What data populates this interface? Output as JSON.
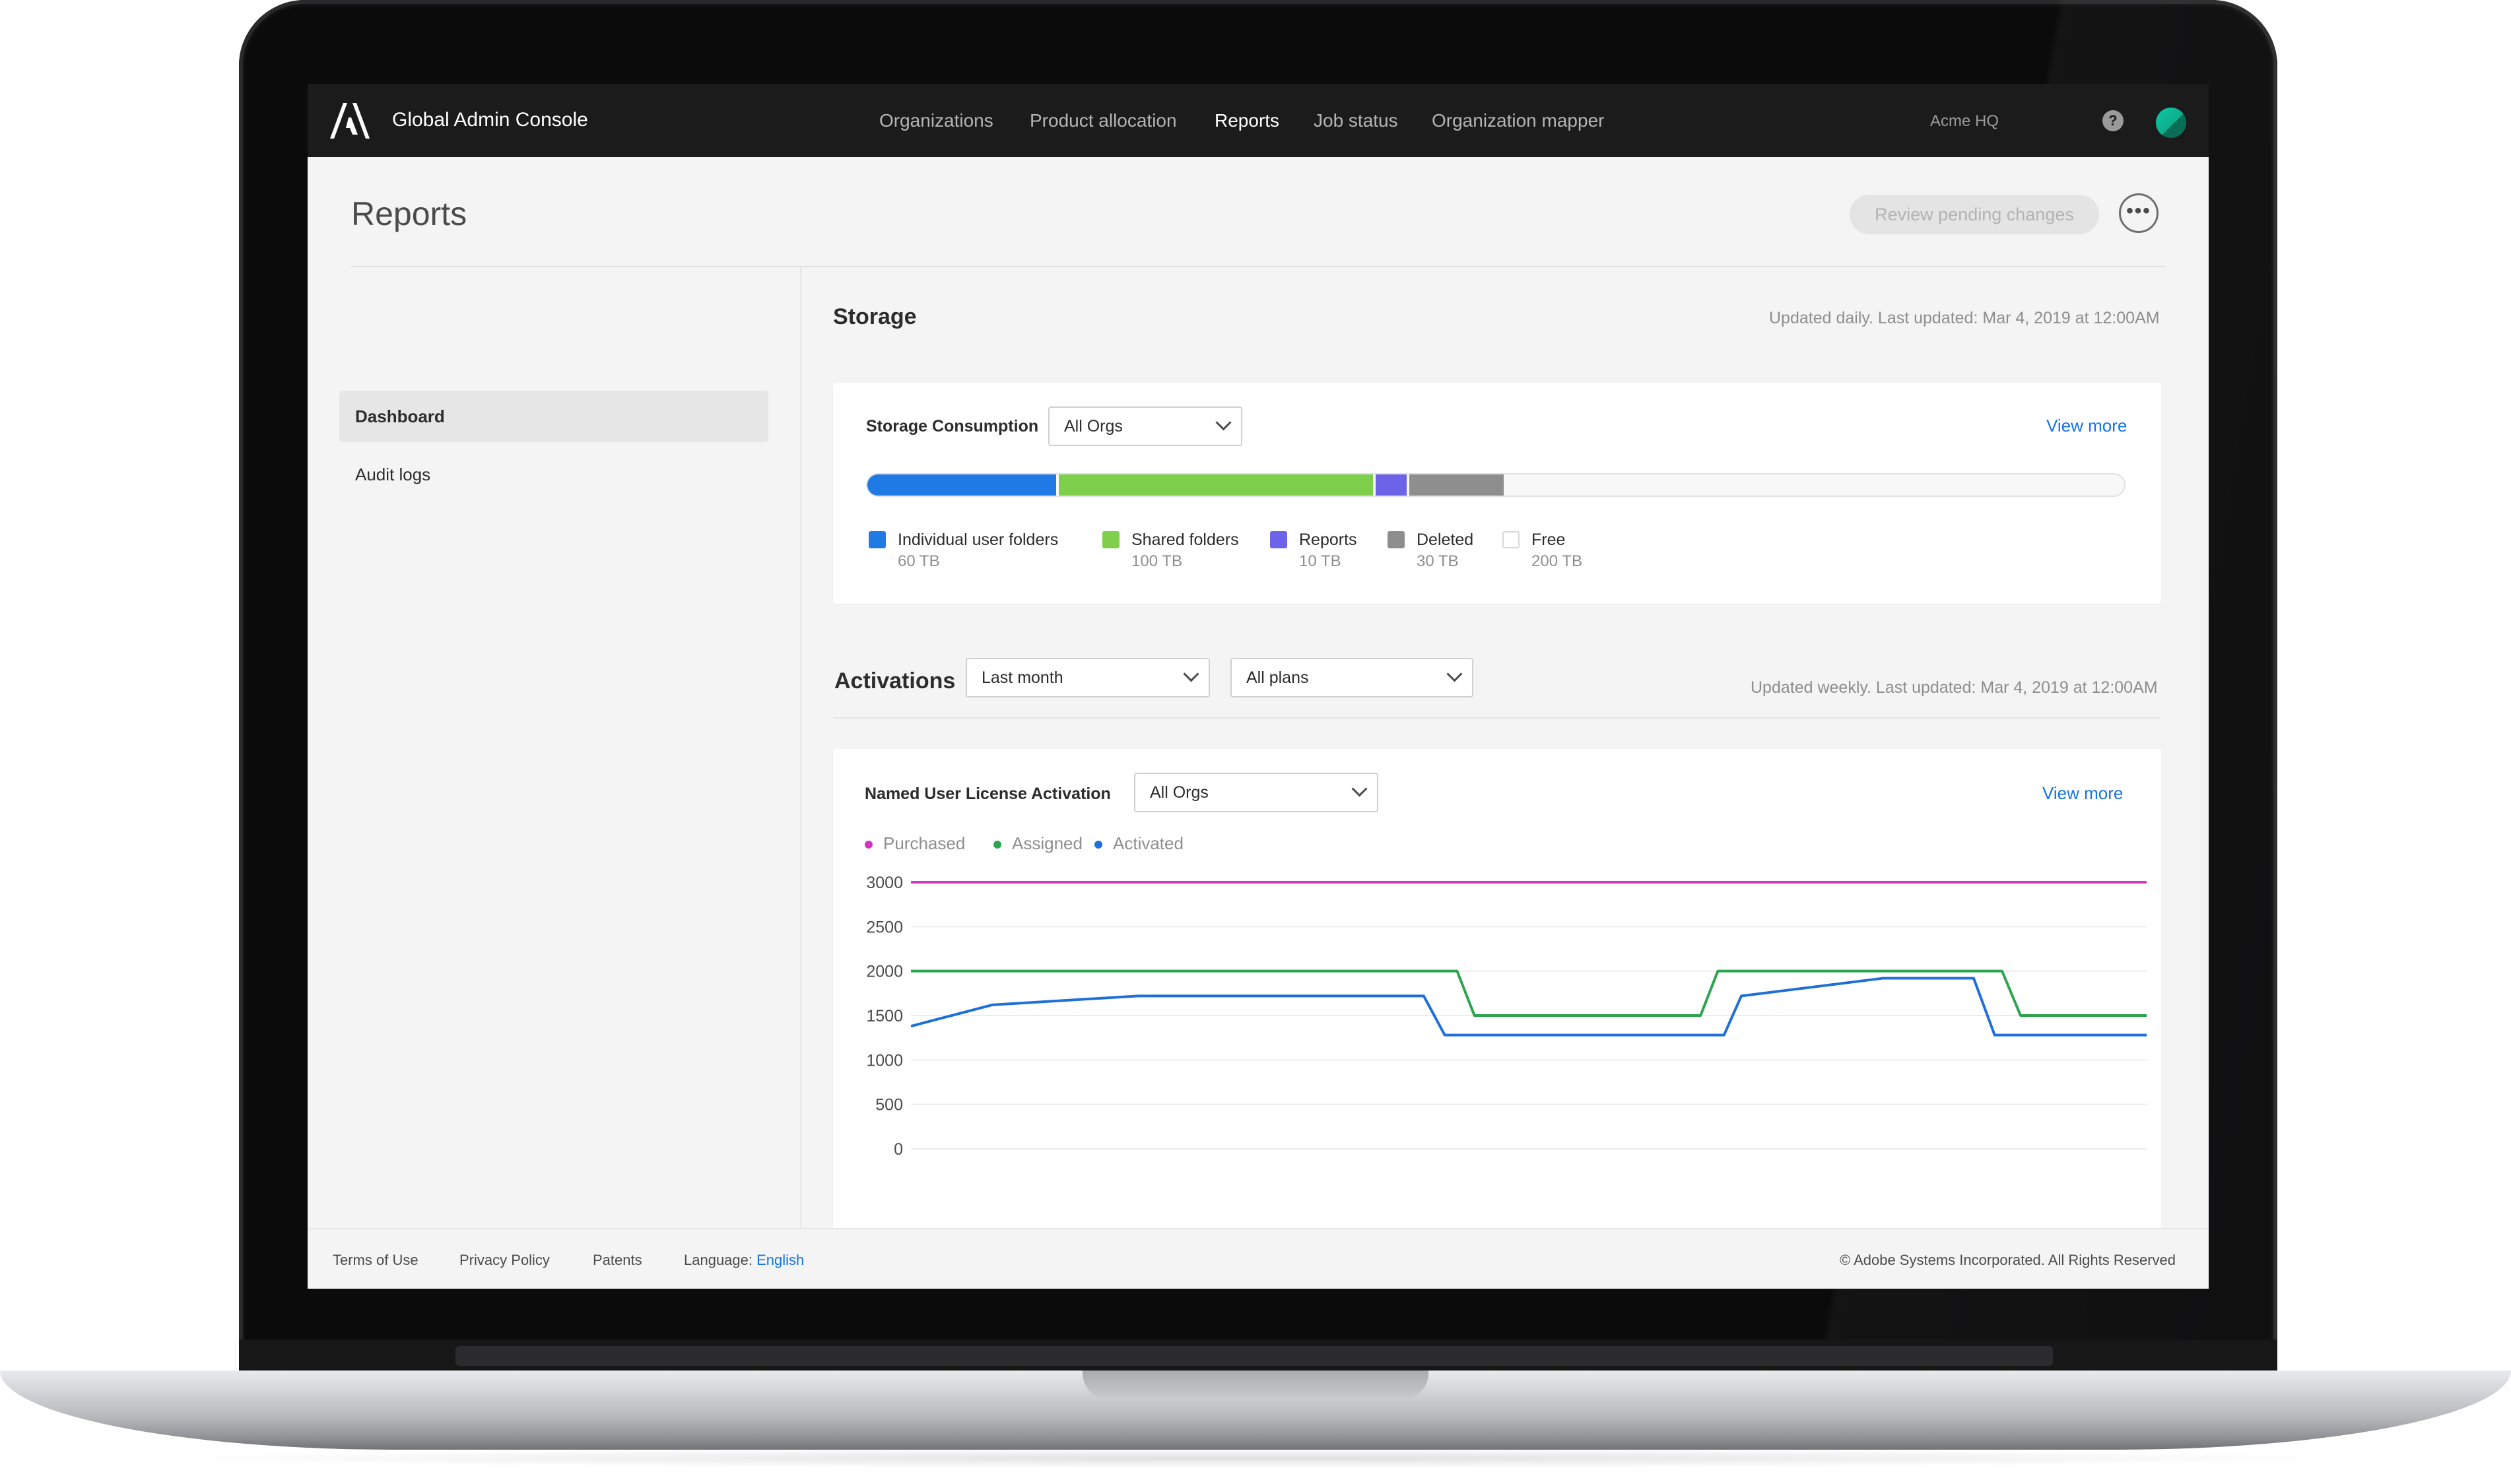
{
  "header": {
    "app_title": "Global Admin Console",
    "nav": [
      "Organizations",
      "Product allocation",
      "Reports",
      "Job status",
      "Organization mapper"
    ],
    "active_nav": "Reports",
    "org_name": "Acme HQ",
    "help_icon": "?"
  },
  "page": {
    "title": "Reports",
    "review_button": "Review pending changes",
    "more_button": "•••"
  },
  "sidebar": {
    "items": [
      {
        "label": "Dashboard",
        "active": true
      },
      {
        "label": "Audit logs",
        "active": false
      }
    ]
  },
  "storage": {
    "title": "Storage",
    "updated": "Updated daily. Last updated: Mar 4, 2019 at 12:00AM",
    "card_label": "Storage Consumption",
    "org_filter": "All Orgs",
    "view_more": "View more",
    "segments": [
      {
        "name": "Individual user folders",
        "value": "60 TB",
        "tb": 60,
        "color": "#1f7ae6"
      },
      {
        "name": "Shared folders",
        "value": "100 TB",
        "tb": 100,
        "color": "#7ed04a"
      },
      {
        "name": "Reports",
        "value": "10 TB",
        "tb": 10,
        "color": "#6c63e8"
      },
      {
        "name": "Deleted",
        "value": "30 TB",
        "tb": 30,
        "color": "#8e8e8e"
      },
      {
        "name": "Free",
        "value": "200 TB",
        "tb": 200,
        "color": "#f8f8f8"
      }
    ]
  },
  "activations": {
    "title": "Activations",
    "period_filter": "Last month",
    "plan_filter": "All plans",
    "updated": "Updated weekly. Last updated: Mar 4, 2019 at 12:00AM",
    "card_label": "Named User License Activation",
    "org_filter": "All Orgs",
    "view_more": "View more"
  },
  "chart_data": {
    "type": "line",
    "title": "Named User License Activation",
    "xlabel": "",
    "ylabel": "",
    "ylim": [
      0,
      3000
    ],
    "yticks": [
      3000,
      2500,
      2000,
      1500,
      1000,
      500,
      0
    ],
    "grid": true,
    "legend": "top-left",
    "series": [
      {
        "name": "Purchased",
        "color": "#d732c6",
        "points": [
          [
            0,
            3000
          ],
          [
            1,
            3000
          ]
        ]
      },
      {
        "name": "Assigned",
        "color": "#2da44e",
        "points": [
          [
            0,
            2000
          ],
          [
            0.442,
            2000
          ],
          [
            0.456,
            1500
          ],
          [
            0.639,
            1500
          ],
          [
            0.653,
            2000
          ],
          [
            0.883,
            2000
          ],
          [
            0.898,
            1500
          ],
          [
            1,
            1500
          ]
        ]
      },
      {
        "name": "Activated",
        "color": "#1f6fd8",
        "points": [
          [
            0,
            1380
          ],
          [
            0.066,
            1620
          ],
          [
            0.184,
            1720
          ],
          [
            0.415,
            1720
          ],
          [
            0.432,
            1280
          ],
          [
            0.658,
            1280
          ],
          [
            0.672,
            1720
          ],
          [
            0.787,
            1920
          ],
          [
            0.86,
            1920
          ],
          [
            0.877,
            1280
          ],
          [
            1,
            1280
          ]
        ]
      }
    ]
  },
  "footer": {
    "terms": "Terms of Use",
    "privacy": "Privacy Policy",
    "patents": "Patents",
    "language_label": "Language:",
    "language_value": "English",
    "copyright": "© Adobe Systems Incorporated. All Rights Reserved"
  }
}
